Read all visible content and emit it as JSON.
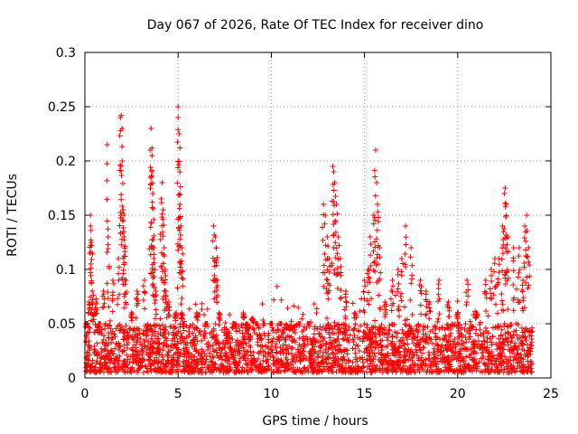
{
  "chart_data": {
    "type": "scatter",
    "title": "Day 067 of 2026, Rate Of TEC Index for receiver dino",
    "xlabel": "GPS time / hours",
    "ylabel": "ROTI / TECUs",
    "xlim": [
      0,
      25
    ],
    "ylim": [
      0,
      0.3
    ],
    "xticks": [
      0,
      5,
      10,
      15,
      20,
      25
    ],
    "xtick_labels": [
      "0",
      "5",
      "10",
      "15",
      "20",
      "25"
    ],
    "yticks": [
      0,
      0.05,
      0.1,
      0.15,
      0.2,
      0.25,
      0.3
    ],
    "ytick_labels": [
      "0",
      "0.05",
      "0.1",
      "0.15",
      "0.2",
      "0.25",
      "0.3"
    ],
    "grid": true,
    "marker": "+",
    "point_color": "#ff0000",
    "series": [
      {
        "name": "ROTI",
        "x": [
          0.1,
          0.2,
          0.3,
          0.3,
          0.35,
          0.4,
          0.5,
          0.6,
          0.8,
          1.0,
          1.2,
          1.25,
          1.5,
          1.8,
          1.9,
          1.95,
          2.0,
          2.0,
          2.05,
          2.1,
          2.1,
          2.2,
          2.5,
          2.8,
          3.2,
          3.5,
          3.55,
          3.6,
          3.6,
          3.65,
          3.7,
          3.7,
          3.8,
          4.1,
          4.15,
          4.2,
          4.25,
          4.3,
          4.35,
          4.5,
          4.9,
          5.0,
          5.0,
          5.05,
          5.1,
          5.1,
          5.15,
          5.2,
          5.2,
          5.3,
          6.0,
          6.5,
          6.9,
          7.0,
          7.05,
          7.1,
          7.2,
          8.0,
          8.5,
          9.0,
          9.2,
          9.6,
          10.0,
          10.5,
          11.0,
          11.5,
          12.0,
          12.8,
          12.9,
          13.0,
          13.1,
          13.3,
          13.35,
          13.4,
          13.5,
          13.6,
          13.7,
          14.0,
          14.5,
          15.0,
          15.2,
          15.3,
          15.5,
          15.6,
          15.65,
          15.7,
          15.8,
          16.1,
          16.5,
          16.8,
          17.0,
          17.2,
          17.5,
          18.0,
          18.3,
          18.5,
          19.0,
          19.5,
          20.0,
          20.5,
          21.0,
          21.5,
          21.8,
          22.0,
          22.2,
          22.4,
          22.5,
          22.55,
          22.6,
          22.7,
          23.0,
          23.3,
          23.5,
          23.6,
          23.7,
          23.8
        ],
        "y": [
          0.05,
          0.07,
          0.15,
          0.14,
          0.125,
          0.08,
          0.06,
          0.07,
          0.05,
          0.08,
          0.215,
          0.13,
          0.09,
          0.11,
          0.24,
          0.242,
          0.23,
          0.2,
          0.155,
          0.15,
          0.13,
          0.09,
          0.06,
          0.08,
          0.09,
          0.21,
          0.23,
          0.19,
          0.205,
          0.17,
          0.12,
          0.11,
          0.08,
          0.165,
          0.18,
          0.155,
          0.12,
          0.1,
          0.08,
          0.07,
          0.06,
          0.25,
          0.24,
          0.225,
          0.19,
          0.16,
          0.14,
          0.12,
          0.06,
          0.05,
          0.06,
          0.05,
          0.14,
          0.13,
          0.12,
          0.09,
          0.06,
          0.05,
          0.06,
          0.055,
          0.05,
          0.05,
          0.05,
          0.05,
          0.045,
          0.05,
          0.05,
          0.16,
          0.15,
          0.13,
          0.11,
          0.195,
          0.19,
          0.18,
          0.16,
          0.13,
          0.11,
          0.08,
          0.06,
          0.09,
          0.1,
          0.13,
          0.15,
          0.21,
          0.18,
          0.16,
          0.12,
          0.07,
          0.09,
          0.1,
          0.11,
          0.14,
          0.12,
          0.09,
          0.08,
          0.07,
          0.09,
          0.07,
          0.06,
          0.09,
          0.06,
          0.09,
          0.1,
          0.11,
          0.11,
          0.14,
          0.17,
          0.175,
          0.16,
          0.13,
          0.12,
          0.12,
          0.09,
          0.14,
          0.15,
          0.12
        ]
      }
    ],
    "dense_band": {
      "x_range": [
        0,
        24
      ],
      "y_low": 0.005,
      "y_high": 0.05,
      "n_points": 2600
    }
  }
}
